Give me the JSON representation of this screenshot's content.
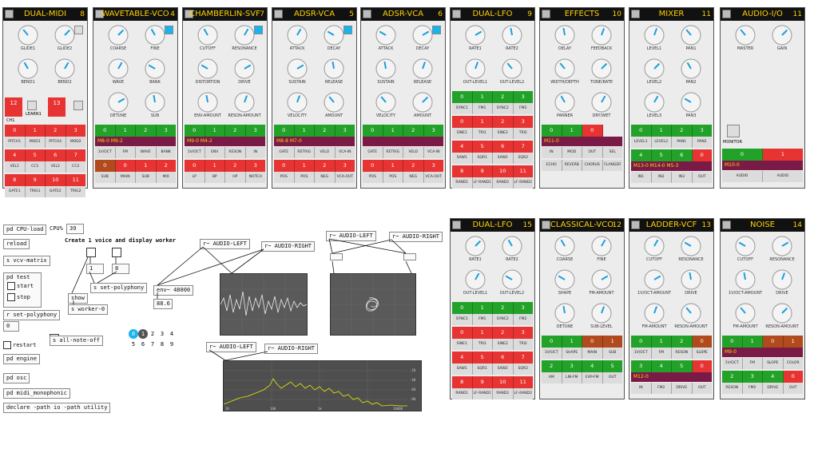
{
  "modules": [
    {
      "title": "DUAL-MIDI",
      "num": "8",
      "knobs": [
        "GLIDE1",
        "GLIDE2",
        "BEND1",
        "BEND2"
      ],
      "midi_left": [
        "12",
        "13"
      ],
      "learn": "LEARN1",
      "ch": "CH1",
      "rows": [
        {
          "t": "n",
          "c": [
            "r",
            "r",
            "r",
            "r"
          ],
          "v": [
            "0",
            "1",
            "2",
            "3"
          ]
        },
        {
          "t": "l",
          "v": [
            "PITCH1",
            "MOD1",
            "PITCH2",
            "MOD2"
          ]
        },
        {
          "t": "n",
          "c": [
            "r",
            "r",
            "r",
            "r"
          ],
          "v": [
            "4",
            "5",
            "6",
            "7"
          ]
        },
        {
          "t": "l",
          "v": [
            "VEL1",
            "CC1",
            "VEL2",
            "CC2"
          ]
        },
        {
          "t": "n",
          "c": [
            "r",
            "r",
            "r",
            "r"
          ],
          "v": [
            "8",
            "9",
            "10",
            "11"
          ]
        },
        {
          "t": "l",
          "v": [
            "GATE1",
            "TRIG1",
            "GATE2",
            "TRIG2"
          ]
        }
      ]
    },
    {
      "title": "WAVETABLE-VCO",
      "num": "4",
      "knobs": [
        "COARSE",
        "FINE",
        "WAVE",
        "BANK",
        "DETUNE",
        "SUB"
      ],
      "rows": [
        {
          "t": "n",
          "c": [
            "g",
            "g",
            "g",
            "g"
          ],
          "v": [
            "0",
            "1",
            "2",
            "3"
          ]
        },
        {
          "t": "s",
          "v": "M8-0    M9-2"
        },
        {
          "t": "l",
          "v": [
            "1V/OCT",
            "FM",
            "WAVE",
            "BANK"
          ]
        },
        {
          "t": "n",
          "c": [
            "o",
            "r",
            "r",
            "r"
          ],
          "v": [
            "0",
            "0",
            "1",
            "2"
          ]
        },
        {
          "t": "l",
          "v": [
            "SUB",
            "MAIN",
            "SUB",
            "MIX"
          ]
        }
      ]
    },
    {
      "title": "CHAMBERLIN-SVF",
      "num": "7",
      "knobs": [
        "CUTOFF",
        "RESONANCE",
        "DISTORTION",
        "DRIVE",
        "ENV-AMOUNT",
        "RESON-AMOUNT"
      ],
      "rows": [
        {
          "t": "n",
          "c": [
            "g",
            "g",
            "g",
            "g"
          ],
          "v": [
            "0",
            "1",
            "2",
            "3"
          ]
        },
        {
          "t": "s",
          "v": "M9-0                  M4-2"
        },
        {
          "t": "l",
          "v": [
            "1V/OCT",
            "ENV",
            "RESON",
            "IN"
          ]
        },
        {
          "t": "n",
          "c": [
            "r",
            "r",
            "r",
            "r"
          ],
          "v": [
            "0",
            "1",
            "2",
            "3"
          ]
        },
        {
          "t": "l",
          "v": [
            "LP",
            "BP",
            "HP",
            "NOTCH"
          ]
        }
      ]
    },
    {
      "title": "ADSR-VCA",
      "num": "5",
      "knobs": [
        "ATTACK",
        "DECAY",
        "SUSTAIN",
        "RELEASE",
        "VELOCITY",
        "AMOUNT"
      ],
      "rows": [
        {
          "t": "n",
          "c": [
            "g",
            "g",
            "g",
            "g"
          ],
          "v": [
            "0",
            "1",
            "2",
            "3"
          ]
        },
        {
          "t": "s",
          "v": "M8-8                  M7-0"
        },
        {
          "t": "l",
          "v": [
            "GATE",
            "RETRIG",
            "VELO",
            "VCA-IN"
          ]
        },
        {
          "t": "n",
          "c": [
            "r",
            "r",
            "r",
            "r"
          ],
          "v": [
            "0",
            "1",
            "2",
            "3"
          ]
        },
        {
          "t": "l",
          "v": [
            "POS",
            "POS",
            "NEG",
            "VCA-OUT"
          ]
        }
      ]
    },
    {
      "title": "ADSR-VCA",
      "num": "6",
      "knobs": [
        "ATTACK",
        "DECAY",
        "SUSTAIN",
        "RELEASE",
        "VELOCITY",
        "AMOUNT"
      ],
      "rows": [
        {
          "t": "n",
          "c": [
            "g",
            "g",
            "g",
            "g"
          ],
          "v": [
            "0",
            "1",
            "2",
            "3"
          ]
        },
        {
          "t": "s",
          "v": ""
        },
        {
          "t": "l",
          "v": [
            "GATE",
            "RETRIG",
            "VELO",
            "VCA-IN"
          ]
        },
        {
          "t": "n",
          "c": [
            "r",
            "r",
            "r",
            "r"
          ],
          "v": [
            "0",
            "1",
            "2",
            "3"
          ]
        },
        {
          "t": "l",
          "v": [
            "POS",
            "POS",
            "NEG",
            "VCA-OUT"
          ]
        }
      ]
    },
    {
      "title": "DUAL-LFO",
      "num": "9",
      "knobs": [
        "RATE1",
        "RATE2",
        "OUT-LEVEL1",
        "OUT-LEVEL2"
      ],
      "rows": [
        {
          "t": "n",
          "c": [
            "g",
            "g",
            "g",
            "g"
          ],
          "v": [
            "0",
            "1",
            "2",
            "3"
          ]
        },
        {
          "t": "l",
          "v": [
            "SYNC1",
            "FM1",
            "SYNC2",
            "FM2"
          ]
        },
        {
          "t": "n",
          "c": [
            "r",
            "r",
            "r",
            "r"
          ],
          "v": [
            "0",
            "1",
            "2",
            "3"
          ]
        },
        {
          "t": "l",
          "v": [
            "SINE1",
            "TRI1",
            "SINE2",
            "TRI2"
          ]
        },
        {
          "t": "n",
          "c": [
            "r",
            "r",
            "r",
            "r"
          ],
          "v": [
            "4",
            "5",
            "6",
            "7"
          ]
        },
        {
          "t": "l",
          "v": [
            "SAW1",
            "SQR1",
            "SAW2",
            "SQR2"
          ]
        },
        {
          "t": "n",
          "c": [
            "r",
            "r",
            "r",
            "r"
          ],
          "v": [
            "8",
            "9",
            "10",
            "11"
          ]
        },
        {
          "t": "l",
          "v": [
            "RAND1",
            "LF-RAND1",
            "RAND2",
            "LF-RAND2"
          ]
        }
      ]
    },
    {
      "title": "EFFECTS",
      "num": "10",
      "knobs": [
        "DELAY",
        "FEEDBACK",
        "WIDTH/DEPTH",
        "TONE/RATE",
        "PANNER",
        "DRY/WET"
      ],
      "rows": [
        {
          "t": "n",
          "c": [
            "g",
            "g",
            "r",
            "x"
          ],
          "v": [
            "0",
            "1",
            "0",
            ""
          ]
        },
        {
          "t": "s",
          "v": "M11-0"
        },
        {
          "t": "l",
          "v": [
            "IN",
            "MOD",
            "OUT",
            "SEL"
          ]
        },
        {
          "t": "l",
          "v": [
            "ECHO",
            "REVERB",
            "CHORUS",
            "FLANGER"
          ]
        }
      ]
    },
    {
      "title": "MIXER",
      "num": "11",
      "knobs": [
        "LEVEL1",
        "PAN1",
        "LEVEL2",
        "PAN2",
        "LEVEL3",
        "PAN3"
      ],
      "rows": [
        {
          "t": "n",
          "c": [
            "g",
            "g",
            "g",
            "g"
          ],
          "v": [
            "0",
            "1",
            "2",
            "3"
          ]
        },
        {
          "t": "l",
          "v": [
            "LEVEL1",
            "LEVEL2",
            "PAN1",
            "PAN2"
          ]
        },
        {
          "t": "n",
          "c": [
            "g",
            "g",
            "g",
            "r"
          ],
          "v": [
            "4",
            "5",
            "6",
            "0"
          ]
        },
        {
          "t": "s",
          "v": "M13-0  M14-0  M5-3"
        },
        {
          "t": "l",
          "v": [
            "IN1",
            "IN2",
            "IN3",
            "OUT"
          ]
        }
      ]
    },
    {
      "title": "AUDIO-I/O",
      "num": "11",
      "knobs": [
        "MASTER",
        "GAIN"
      ],
      "monitor": "MONITOR",
      "rows": [
        {
          "t": "n",
          "c": [
            "g",
            "r"
          ],
          "v": [
            "0",
            "1"
          ]
        },
        {
          "t": "s",
          "v": "M10-0"
        },
        {
          "t": "l",
          "v": [
            "AUDIO",
            "AUDIO"
          ]
        }
      ]
    },
    {
      "title": "DUAL-LFO",
      "num": "15",
      "knobs": [
        "RATE1",
        "RATE2",
        "OUT-LEVEL1",
        "OUT-LEVEL2"
      ],
      "rows": [
        {
          "t": "n",
          "c": [
            "g",
            "g",
            "g",
            "g"
          ],
          "v": [
            "0",
            "1",
            "2",
            "3"
          ]
        },
        {
          "t": "l",
          "v": [
            "SYNC1",
            "FM1",
            "SYNC2",
            "FM2"
          ]
        },
        {
          "t": "n",
          "c": [
            "r",
            "r",
            "r",
            "r"
          ],
          "v": [
            "0",
            "1",
            "2",
            "3"
          ]
        },
        {
          "t": "l",
          "v": [
            "SINE1",
            "TRI1",
            "SINE2",
            "TRI2"
          ]
        },
        {
          "t": "n",
          "c": [
            "r",
            "r",
            "r",
            "r"
          ],
          "v": [
            "4",
            "5",
            "6",
            "7"
          ]
        },
        {
          "t": "l",
          "v": [
            "SAW1",
            "SQR1",
            "SAW2",
            "SQR2"
          ]
        },
        {
          "t": "n",
          "c": [
            "r",
            "r",
            "r",
            "r"
          ],
          "v": [
            "8",
            "9",
            "10",
            "11"
          ]
        },
        {
          "t": "l",
          "v": [
            "RAND1",
            "LF-RAND1",
            "RAND2",
            "LF-RAND2"
          ]
        }
      ]
    },
    {
      "title": "CLASSICAL-VCO",
      "num": "12",
      "knobs": [
        "COARSE",
        "FINE",
        "SHAPE",
        "FM-AMOUNT",
        "DETUNE",
        "SUB-LEVEL"
      ],
      "rows": [
        {
          "t": "n",
          "c": [
            "g",
            "g",
            "o",
            "o"
          ],
          "v": [
            "0",
            "1",
            "0",
            "1"
          ]
        },
        {
          "t": "l",
          "v": [
            "1V/OCT",
            "SHAPE",
            "MAIN",
            "SUB"
          ]
        },
        {
          "t": "n",
          "c": [
            "g",
            "g",
            "g",
            "g"
          ],
          "v": [
            "2",
            "3",
            "4",
            "5"
          ]
        },
        {
          "t": "l",
          "v": [
            "AM",
            "LIN-FM",
            "EXP-FM",
            "OUT"
          ]
        }
      ]
    },
    {
      "title": "LADDER-VCF",
      "num": "13",
      "knobs": [
        "CUTOFF",
        "RESONANCE",
        "1V/OCT-AMOUNT",
        "DRIVE",
        "FM-AMOUNT",
        "RESON-AMOUNT"
      ],
      "rows": [
        {
          "t": "n",
          "c": [
            "g",
            "g",
            "g",
            "o"
          ],
          "v": [
            "0",
            "1",
            "2",
            "0"
          ]
        },
        {
          "t": "l",
          "v": [
            "1V/OCT",
            "FM",
            "RESON",
            "SLOPE"
          ]
        },
        {
          "t": "n",
          "c": [
            "g",
            "g",
            "g",
            "r"
          ],
          "v": [
            "3",
            "4",
            "5",
            "0"
          ]
        },
        {
          "t": "s",
          "v": "M12-0"
        },
        {
          "t": "l",
          "v": [
            "IN",
            "FM2",
            "DRIVE",
            "OUT"
          ]
        }
      ]
    },
    {
      "title": "NOISE",
      "num": "14",
      "knobs": [
        "CUTOFF",
        "RESONANCE",
        "1V/OCT-AMOUNT",
        "DRIVE",
        "FM-AMOUNT",
        "RESON-AMOUNT"
      ],
      "rows": [
        {
          "t": "n",
          "c": [
            "g",
            "g",
            "o",
            "o"
          ],
          "v": [
            "0",
            "1",
            "0",
            "1"
          ]
        },
        {
          "t": "s",
          "v": "M9-0"
        },
        {
          "t": "l",
          "v": [
            "1V/OCT",
            "FM",
            "SLOPE",
            "COLOR"
          ]
        },
        {
          "t": "n",
          "c": [
            "g",
            "g",
            "g",
            "r"
          ],
          "v": [
            "2",
            "3",
            "4",
            "0"
          ]
        },
        {
          "t": "l",
          "v": [
            "RESON",
            "FM2",
            "DRIVE",
            "OUT"
          ]
        }
      ]
    }
  ],
  "patch": {
    "pd_cpu": "pd CPU-load",
    "cpu_label": "CPU%",
    "cpu_val": "39",
    "reload": "reload",
    "vcv": "s vcv-matrix",
    "pd_test": "pd test",
    "start": "start",
    "stop": "stop",
    "set_poly_r": "r set-polyphony",
    "poly_val": "0",
    "restart": "restart",
    "pd_engine": "pd engine",
    "pd_osc": "pd osc",
    "pd_midi": "pd midi_monophonic",
    "declare": "declare -path io -path utility",
    "create": "Create 1 voice and display worker",
    "one": "1",
    "eight": "8",
    "set_poly_s": "s set-polyphony",
    "show": "show",
    "worker": "s worker-0",
    "note_off": "s all-note-off",
    "r_left": "r~ AUDIO-LEFT",
    "r_right": "r~ AUDIO-RIGHT",
    "env": "env~ 48000",
    "env_val": "88.6",
    "radio": [
      "0",
      "1",
      "2",
      "3",
      "4",
      "5",
      "6",
      "7",
      "8",
      "9"
    ],
    "spec_ticks": [
      "-20",
      "-40",
      "-60",
      "-80"
    ],
    "spec_x": [
      "20",
      "100",
      "1k",
      "10000"
    ]
  }
}
